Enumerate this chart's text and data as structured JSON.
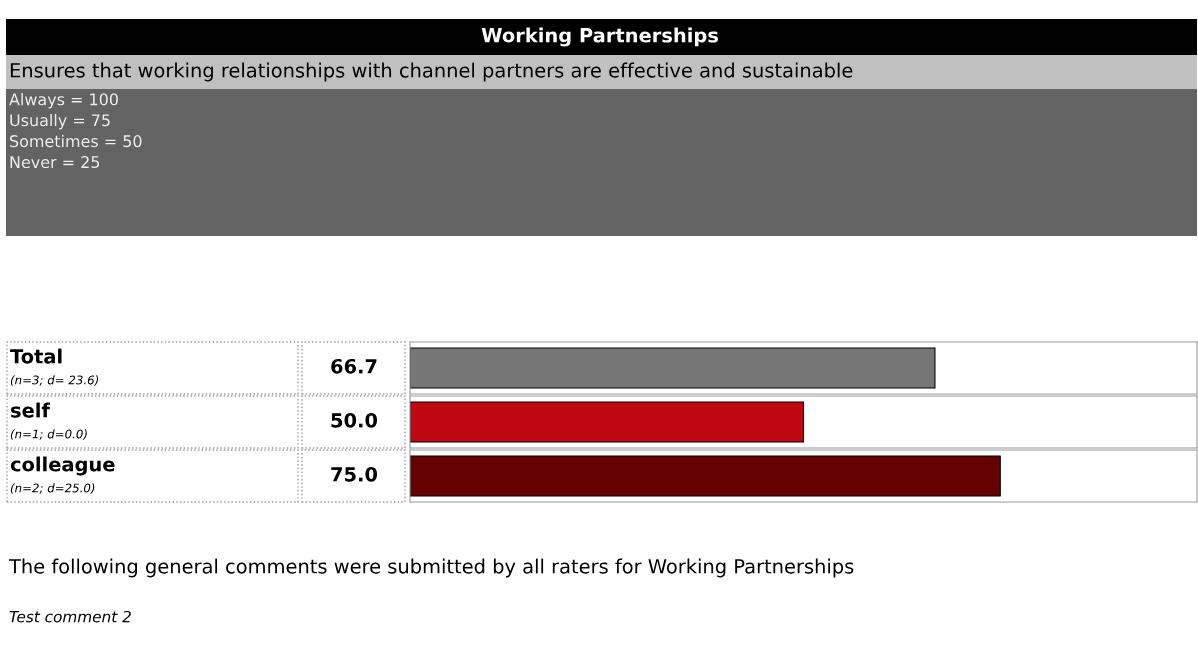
{
  "chart_data": {
    "type": "bar",
    "orientation": "horizontal",
    "title": "Working Partnerships",
    "subtitle": "Ensures that working relationships with channel partners are effective and sustainable",
    "categories": [
      "Total",
      "self",
      "colleague"
    ],
    "values": [
      66.7,
      50.0,
      75.0
    ],
    "colors": [
      "#777777",
      "#c00812",
      "#640000"
    ],
    "value_labels": [
      "66.7",
      "50.0",
      "75.0"
    ],
    "xlim": [
      0,
      100
    ],
    "annotations": [
      "Always = 100\nUsually = 75\nSometimes = 50\nNever = 25",
      "(n=3; d= 23.6)",
      "(n=1; d=0.0)",
      "(n=2; d=25.0)",
      "The following general comments were submitted by all raters for Working Partnerships",
      "Test comment 2"
    ]
  }
}
